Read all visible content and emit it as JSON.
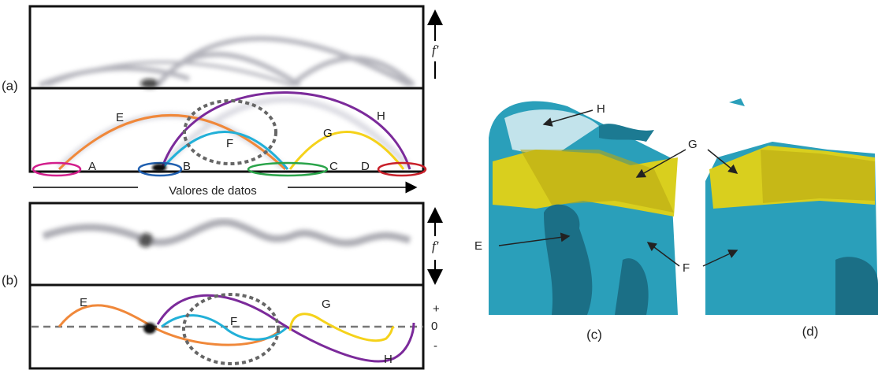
{
  "panel_a": {
    "label": "(a)",
    "axis_label": "f′",
    "curves": [
      "E",
      "F",
      "G",
      "H"
    ],
    "points": [
      "A",
      "B",
      "C",
      "D"
    ],
    "x_axis_label": "Valores de datos"
  },
  "panel_b": {
    "label": "(b)",
    "axis_label": "f′",
    "curves": [
      "E",
      "F",
      "G",
      "H"
    ],
    "sign_labels": [
      "+",
      "0",
      "-"
    ]
  },
  "panel_c": {
    "label": "(c)",
    "annotations": [
      "H",
      "G",
      "E",
      "F"
    ]
  },
  "panel_d": {
    "label": "(d)"
  }
}
